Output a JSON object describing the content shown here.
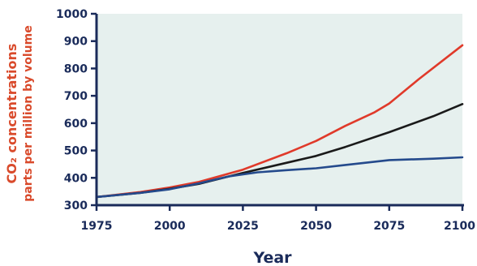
{
  "chart_data": {
    "type": "line",
    "title": "",
    "xlabel": "Year",
    "ylabel_line1": "CO₂ concentrations",
    "ylabel_line2": "parts per million by volume",
    "xlim": [
      1975,
      2100
    ],
    "ylim": [
      300,
      1000
    ],
    "x_ticks": [
      1975,
      2000,
      2025,
      2050,
      2075,
      2100
    ],
    "y_ticks": [
      300,
      400,
      500,
      600,
      700,
      800,
      900,
      1000
    ],
    "grid": false,
    "legend": "none",
    "colors": {
      "plot_background": "#e6f0ee",
      "axis": "#1a2b5a",
      "tick_label": "#1a2b5a",
      "xlabel": "#1a2b5a",
      "ylabel": "#d94a2b"
    },
    "series": [
      {
        "color": "#e03a2a",
        "x": [
          1975,
          1990,
          2000,
          2010,
          2025,
          2040,
          2050,
          2060,
          2070,
          2075,
          2085,
          2100
        ],
        "y": [
          330,
          348,
          365,
          385,
          430,
          490,
          535,
          590,
          640,
          672,
          760,
          885
        ]
      },
      {
        "color": "#1a1a1a",
        "x": [
          1975,
          1990,
          2000,
          2010,
          2025,
          2040,
          2050,
          2060,
          2075,
          2090,
          2100
        ],
        "y": [
          330,
          345,
          360,
          378,
          418,
          455,
          480,
          513,
          567,
          625,
          670
        ]
      },
      {
        "color": "#244a8c",
        "x": [
          1975,
          1990,
          2000,
          2010,
          2020,
          2030,
          2040,
          2050,
          2060,
          2075,
          2090,
          2100
        ],
        "y": [
          330,
          345,
          358,
          380,
          405,
          420,
          428,
          435,
          447,
          465,
          470,
          475
        ]
      }
    ]
  }
}
